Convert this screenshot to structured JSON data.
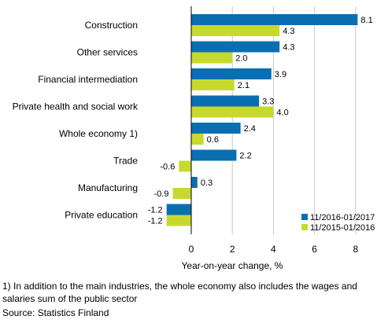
{
  "chart_data": {
    "type": "bar",
    "orientation": "horizontal",
    "categories": [
      "Construction",
      "Other services",
      "Financial intermediation",
      "Private health and social work",
      "Whole economy 1)",
      "Trade",
      "Manufacturing",
      "Private education"
    ],
    "series": [
      {
        "name": "11/2016-01/2017",
        "color": "#0a6fb0",
        "values": [
          8.1,
          4.3,
          3.9,
          3.3,
          2.4,
          2.2,
          0.3,
          -1.2
        ]
      },
      {
        "name": "11/2015-01/2016",
        "color": "#c8d92e",
        "values": [
          4.3,
          2.0,
          2.1,
          4.0,
          0.6,
          -0.6,
          -0.9,
          -1.2
        ]
      }
    ],
    "value_labels": [
      [
        "8.1",
        "4.3",
        "3.9",
        "3.3",
        "2.4",
        "2.2",
        "0.3",
        "-1.2"
      ],
      [
        "4.3",
        "2.0",
        "2.1",
        "4.0",
        "0.6",
        "-0.6",
        "-0.9",
        "-1.2"
      ]
    ],
    "xlabel": "Year-on-year change, %",
    "xlim": [
      -1.2,
      9
    ],
    "xticks": [
      0,
      2,
      4,
      6,
      8
    ],
    "xtick_labels": [
      "0",
      "2",
      "4",
      "6",
      "8"
    ],
    "grid": "vertical",
    "legend_position": "bottom-right"
  },
  "footnote": "1) In addition to the main industries, the whole economy also includes the wages and salaries sum of the public sector",
  "source": "Source: Statistics Finland"
}
